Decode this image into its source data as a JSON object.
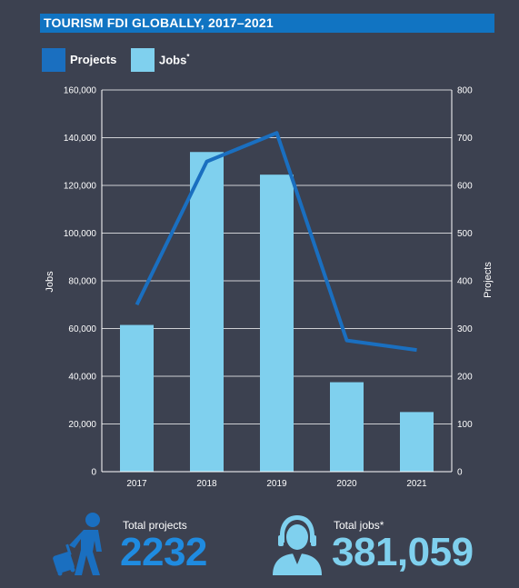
{
  "title": "TOURISM FDI GLOBALLY, 2017–2021",
  "legend": {
    "projects_label": "Projects",
    "jobs_label": "Jobs",
    "jobs_marker": "*"
  },
  "colors": {
    "projects": "#1a6fc0",
    "jobs": "#7fd0ee",
    "background": "#3c4150",
    "title_bar": "#1174c2"
  },
  "chart_data": {
    "type": "bar",
    "categories": [
      "2017",
      "2018",
      "2019",
      "2020",
      "2021"
    ],
    "series": [
      {
        "name": "Jobs",
        "type": "bar",
        "axis": "left",
        "values": [
          61500,
          134000,
          124500,
          37500,
          25000
        ]
      },
      {
        "name": "Projects",
        "type": "line",
        "axis": "right",
        "values": [
          350,
          650,
          710,
          275,
          255
        ]
      }
    ],
    "ylabel_left": "Jobs",
    "ylabel_right": "Projects",
    "ylim_left": [
      0,
      160000
    ],
    "ylim_right": [
      0,
      800
    ],
    "yticks_left": [
      "0",
      "20,000",
      "40,000",
      "60,000",
      "80,000",
      "100,000",
      "120,000",
      "140,000",
      "160,000"
    ],
    "yticks_right": [
      "0",
      "100",
      "200",
      "300",
      "400",
      "500",
      "600",
      "700",
      "800"
    ],
    "grid": true,
    "legend_position": "top-left"
  },
  "stats": {
    "projects_caption": "Total projects",
    "projects_value": "2232",
    "jobs_caption": "Total jobs*",
    "jobs_value": "381,059",
    "traveler_icon": "traveler-with-suitcase-icon",
    "worker_icon": "headset-worker-icon"
  }
}
